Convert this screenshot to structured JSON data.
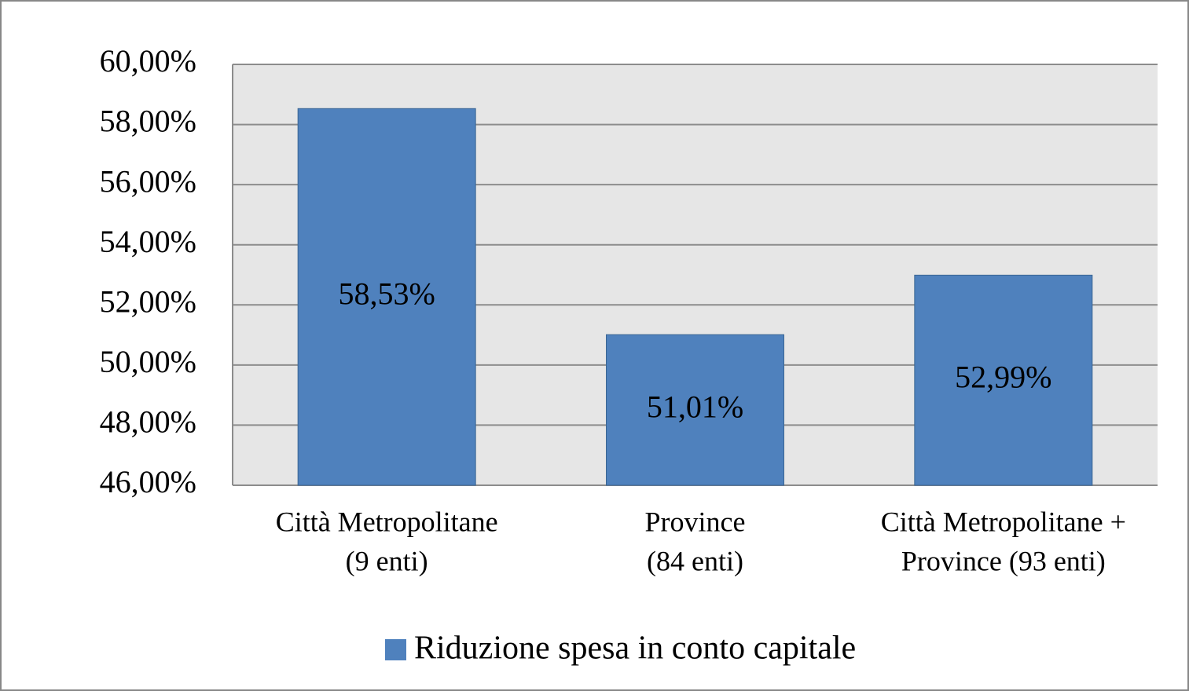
{
  "chart_data": {
    "type": "bar",
    "categories": [
      [
        "Città Metropolitane",
        "(9 enti)"
      ],
      [
        "Province",
        "(84 enti)"
      ],
      [
        "Città Metropolitane +",
        "Province (93 enti)"
      ]
    ],
    "series": [
      {
        "name": "Riduzione spesa in conto capitale",
        "color": "#4f81bd",
        "values": [
          58.53,
          51.01,
          52.99
        ],
        "value_labels": [
          "58,53%",
          "51,01%",
          "52,99%"
        ]
      }
    ],
    "ylim": [
      46,
      60
    ],
    "yticks": [
      {
        "value": 46,
        "label": "46,00%"
      },
      {
        "value": 48,
        "label": "48,00%"
      },
      {
        "value": 50,
        "label": "50,00%"
      },
      {
        "value": 52,
        "label": "52,00%"
      },
      {
        "value": 54,
        "label": "54,00%"
      },
      {
        "value": 56,
        "label": "56,00%"
      },
      {
        "value": 58,
        "label": "58,00%"
      },
      {
        "value": 60,
        "label": "60,00%"
      }
    ],
    "grid": true,
    "legend": "bottom"
  }
}
